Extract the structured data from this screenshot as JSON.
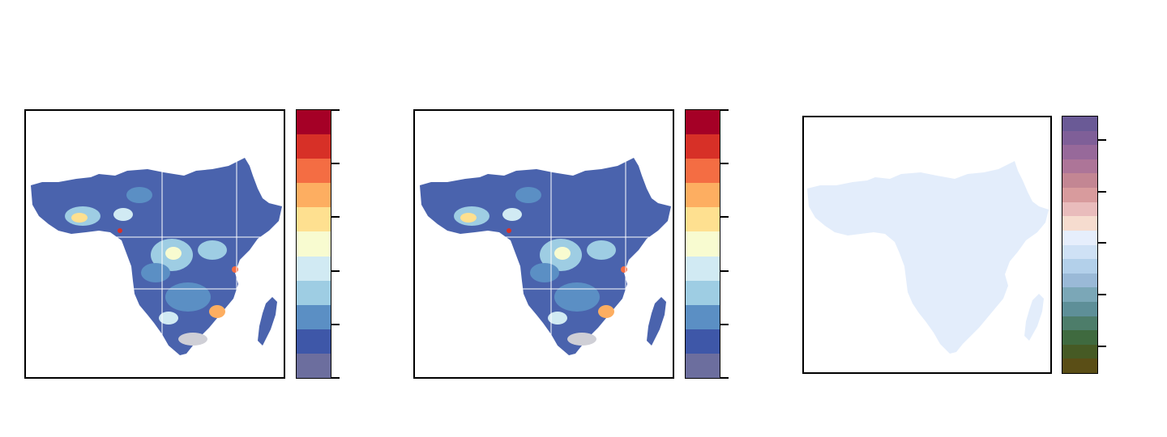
{
  "panels": [
    {
      "id": "map-1",
      "legend": {
        "colors": [
          "#a50026",
          "#d73027",
          "#f46d43",
          "#fdae61",
          "#fee090",
          "#f8fbd0",
          "#d1eaf3",
          "#9ecde3",
          "#5b8fc4",
          "#3e57a8",
          "#6c6e9e"
        ],
        "tick_count": 6
      },
      "colors": {
        "water_lines": "#ffffff",
        "land_base": "#4a63ad",
        "no_data": "#cfcfd6"
      }
    },
    {
      "id": "map-2",
      "legend": {
        "colors": [
          "#a50026",
          "#d73027",
          "#f46d43",
          "#fdae61",
          "#fee090",
          "#f8fbd0",
          "#d1eaf3",
          "#9ecde3",
          "#5b8fc4",
          "#3e57a8",
          "#6c6e9e"
        ],
        "tick_count": 6
      },
      "colors": {
        "water_lines": "#ffffff",
        "land_base": "#4a63ad",
        "no_data": "#cfcfd6"
      }
    },
    {
      "id": "map-3",
      "legend": {
        "colors": [
          "#6a5a96",
          "#7f5f98",
          "#97699a",
          "#ad7598",
          "#c38693",
          "#d89b9d",
          "#e9bcbc",
          "#f6dccf",
          "#e6eefc",
          "#cfe1f5",
          "#b3d0ea",
          "#9ab9d7",
          "#7ba7b7",
          "#5e8f98",
          "#4d7d6a",
          "#3f6a3f",
          "#465a24",
          "#5a4e16"
        ],
        "tick_count": 5
      },
      "colors": {
        "land_fill": "#e3edfb"
      }
    }
  ]
}
